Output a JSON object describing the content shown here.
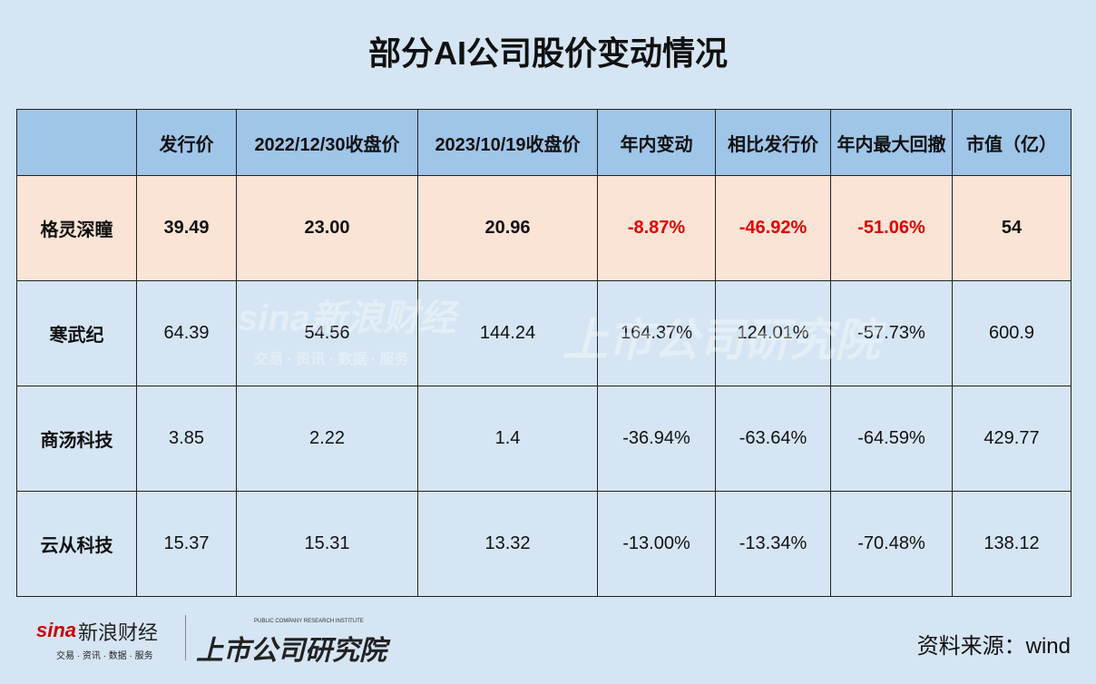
{
  "title": "部分AI公司股价变动情况",
  "table": {
    "columns": [
      "发行价",
      "2022/12/30收盘价",
      "2023/10/19收盘价",
      "年内变动",
      "相比发行价",
      "年内最大回撤",
      "市值（亿）"
    ],
    "rows": [
      [
        "格灵深瞳",
        "39.49",
        "23.00",
        "20.96",
        "-8.87%",
        "-46.92%",
        "-51.06%",
        "54"
      ],
      [
        "寒武纪",
        "64.39",
        "54.56",
        "144.24",
        "164.37%",
        "124.01%",
        "-57.73%",
        "600.9"
      ],
      [
        "商汤科技",
        "3.85",
        "2.22",
        "1.4",
        "-36.94%",
        "-63.64%",
        "-64.59%",
        "429.77"
      ],
      [
        "云从科技",
        "15.37",
        "15.31",
        "13.32",
        "-13.00%",
        "-13.34%",
        "-70.48%",
        "138.12"
      ]
    ]
  },
  "logo": {
    "brand": "新浪财经",
    "sina": "sina",
    "tagline": "交易 · 资讯 · 数据 · 服务",
    "institute_en": "PUBLIC COMPANY RESEARCH INSTITUTE",
    "institute": "上市公司研究院"
  },
  "source": "资料来源：wind"
}
